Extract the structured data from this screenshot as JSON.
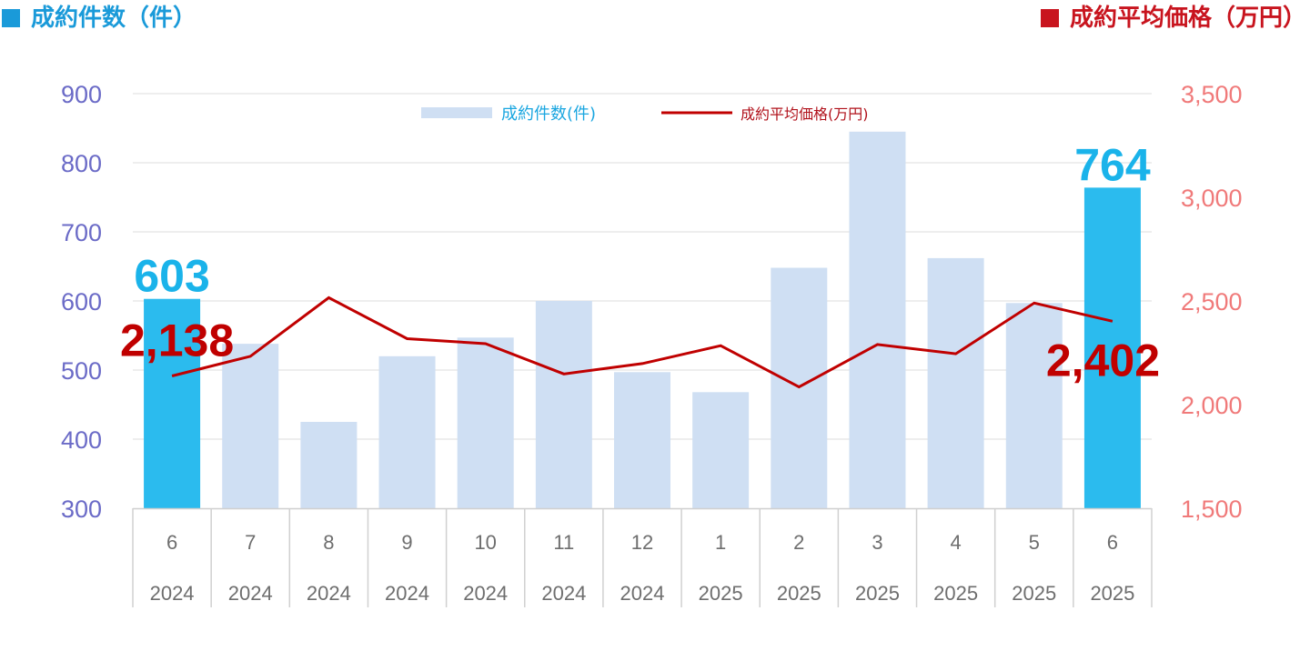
{
  "header": {
    "left_title": "成約件数（件）",
    "right_title": "成約平均価格（万円）",
    "left_color": "#1a9ad9",
    "right_color": "#c8141e"
  },
  "chart_data": {
    "type": "bar",
    "categories": [
      "6",
      "7",
      "8",
      "9",
      "10",
      "11",
      "12",
      "1",
      "2",
      "3",
      "4",
      "5",
      "6"
    ],
    "years": [
      "2024",
      "2024",
      "2024",
      "2024",
      "2024",
      "2024",
      "2024",
      "2025",
      "2025",
      "2025",
      "2025",
      "2025",
      "2025"
    ],
    "series": [
      {
        "name": "成約件数(件)",
        "chart_type": "bar",
        "axis": "left",
        "values": [
          603,
          538,
          425,
          520,
          547,
          600,
          497,
          468,
          648,
          845,
          662,
          597,
          764
        ],
        "highlight_indices": [
          0,
          12
        ],
        "color": "#cfdff3",
        "highlight_color": "#2bbbee"
      },
      {
        "name": "成約平均価格(万円)",
        "chart_type": "line",
        "axis": "right",
        "values": [
          2138,
          2233,
          2516,
          2318,
          2294,
          2148,
          2198,
          2284,
          2085,
          2290,
          2245,
          2490,
          2402
        ],
        "color": "#c00000"
      }
    ],
    "y_left": {
      "min": 300,
      "max": 900,
      "ticks": [
        "300",
        "400",
        "500",
        "600",
        "700",
        "800",
        "900"
      ]
    },
    "y_right": {
      "min": 1500,
      "max": 3500,
      "ticks": [
        "1,500",
        "2,000",
        "2,500",
        "3,000",
        "3,500"
      ]
    },
    "legend_position": "top-center",
    "gridlines": true,
    "data_labels": [
      {
        "series": 0,
        "index": 0,
        "text": "603"
      },
      {
        "series": 0,
        "index": 12,
        "text": "764"
      },
      {
        "series": 1,
        "index": 0,
        "text": "2,138"
      },
      {
        "series": 1,
        "index": 12,
        "text": "2,402"
      }
    ]
  }
}
